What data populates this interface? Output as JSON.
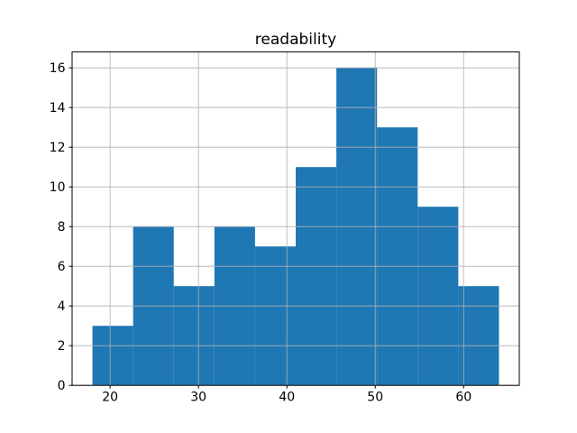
{
  "chart_data": {
    "type": "bar",
    "variant": "histogram",
    "title": "readability",
    "bin_edges": [
      18.0,
      22.6,
      27.2,
      31.8,
      36.4,
      41.0,
      45.6,
      50.2,
      54.8,
      59.4,
      64.0
    ],
    "values": [
      3,
      8,
      5,
      8,
      7,
      11,
      16,
      13,
      9,
      5
    ],
    "xlabel": "",
    "ylabel": "",
    "xticks": [
      20,
      30,
      40,
      50,
      60
    ],
    "yticks": [
      0,
      2,
      4,
      6,
      8,
      10,
      12,
      14,
      16
    ],
    "xlim": [
      15.7,
      66.3
    ],
    "ylim": [
      0,
      16.8
    ],
    "grid": true,
    "grid_above_bars": true,
    "legend": "none",
    "colors": {
      "bar": "#1f77b4",
      "grid": "#b0b0b0",
      "spine": "#000000",
      "text": "#000000",
      "background": "#ffffff"
    }
  }
}
